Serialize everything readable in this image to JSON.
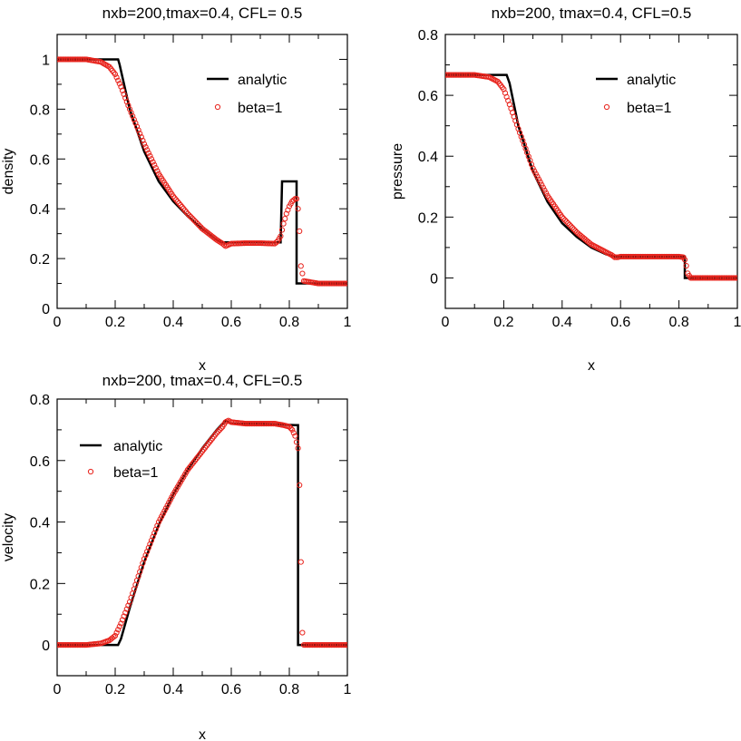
{
  "chart_data": [
    {
      "type": "line",
      "title": "nxb=200,tmax=0.4, CFL= 0.5",
      "xlabel": "x",
      "ylabel": "density",
      "xlim": [
        0,
        1
      ],
      "ylim": [
        0,
        1.1
      ],
      "xticks": [
        0,
        0.2,
        0.4,
        0.6,
        0.8,
        1
      ],
      "xtick_labels": [
        "0",
        "0.2",
        "0.4",
        "0.6",
        "0.8",
        "1"
      ],
      "yticks": [
        0,
        0.2,
        0.4,
        0.6,
        0.8,
        1
      ],
      "ytick_labels": [
        "0",
        "0.2",
        "0.4",
        "0.6",
        "0.8",
        "1"
      ],
      "legend_position": "top-right",
      "grid": false,
      "series": [
        {
          "name": "analytic",
          "style": "line",
          "color": "#000000",
          "x": [
            0,
            0.21,
            0.215,
            0.25,
            0.3,
            0.35,
            0.4,
            0.45,
            0.5,
            0.55,
            0.57,
            0.7,
            0.77,
            0.775,
            0.8,
            0.8,
            0.825,
            0.825,
            1.0
          ],
          "y": [
            1.0,
            1.0,
            0.98,
            0.8,
            0.63,
            0.51,
            0.43,
            0.37,
            0.32,
            0.275,
            0.265,
            0.265,
            0.265,
            0.51,
            0.51,
            0.51,
            0.51,
            0.1,
            0.1
          ]
        },
        {
          "name": "beta=1",
          "style": "markers",
          "color": "#e8231c",
          "x": [
            0,
            0.1,
            0.15,
            0.18,
            0.2,
            0.22,
            0.25,
            0.3,
            0.35,
            0.4,
            0.45,
            0.5,
            0.55,
            0.57,
            0.58,
            0.59,
            0.6,
            0.65,
            0.7,
            0.75,
            0.76,
            0.77,
            0.78,
            0.79,
            0.8,
            0.81,
            0.82,
            0.825,
            0.83,
            0.835,
            0.84,
            0.85,
            0.9,
            1.0
          ],
          "y": [
            1.0,
            1.0,
            0.99,
            0.97,
            0.94,
            0.89,
            0.8,
            0.66,
            0.54,
            0.45,
            0.38,
            0.32,
            0.275,
            0.26,
            0.25,
            0.255,
            0.26,
            0.262,
            0.262,
            0.26,
            0.27,
            0.29,
            0.34,
            0.38,
            0.41,
            0.43,
            0.44,
            0.44,
            0.4,
            0.31,
            0.17,
            0.11,
            0.1,
            0.1
          ]
        }
      ]
    },
    {
      "type": "line",
      "title": "nxb=200, tmax=0.4, CFL=0.5",
      "xlabel": "x",
      "ylabel": "pressure",
      "xlim": [
        0,
        1
      ],
      "ylim": [
        -0.1,
        0.8
      ],
      "xticks": [
        0,
        0.2,
        0.4,
        0.6,
        0.8,
        1
      ],
      "xtick_labels": [
        "0",
        "0.2",
        "0.4",
        "0.6",
        "0.8",
        "1"
      ],
      "yticks": [
        0,
        0.2,
        0.4,
        0.6,
        0.8
      ],
      "ytick_labels": [
        "0",
        "0.2",
        "0.4",
        "0.6",
        "0.8"
      ],
      "legend_position": "top-right",
      "grid": false,
      "series": [
        {
          "name": "analytic",
          "style": "line",
          "color": "#000000",
          "x": [
            0,
            0.21,
            0.22,
            0.25,
            0.3,
            0.35,
            0.4,
            0.45,
            0.5,
            0.55,
            0.58,
            0.7,
            0.82,
            0.82,
            1.0
          ],
          "y": [
            0.667,
            0.667,
            0.64,
            0.5,
            0.35,
            0.25,
            0.18,
            0.135,
            0.1,
            0.078,
            0.07,
            0.07,
            0.07,
            0.0,
            0.0
          ]
        },
        {
          "name": "beta=1",
          "style": "markers",
          "color": "#e8231c",
          "x": [
            0,
            0.1,
            0.15,
            0.18,
            0.2,
            0.22,
            0.25,
            0.3,
            0.35,
            0.4,
            0.45,
            0.5,
            0.55,
            0.57,
            0.58,
            0.59,
            0.6,
            0.65,
            0.7,
            0.75,
            0.8,
            0.815,
            0.82,
            0.825,
            0.83,
            0.84,
            0.9,
            1.0
          ],
          "y": [
            0.667,
            0.667,
            0.66,
            0.645,
            0.62,
            0.57,
            0.49,
            0.36,
            0.27,
            0.2,
            0.15,
            0.11,
            0.085,
            0.075,
            0.068,
            0.068,
            0.07,
            0.07,
            0.07,
            0.07,
            0.07,
            0.068,
            0.06,
            0.04,
            0.015,
            0.0,
            0.0,
            0.0
          ]
        }
      ]
    },
    {
      "type": "line",
      "title": "nxb=200, tmax=0.4, CFL=0.5",
      "xlabel": "x",
      "ylabel": "velocity",
      "xlim": [
        0,
        1
      ],
      "ylim": [
        -0.1,
        0.8
      ],
      "xticks": [
        0,
        0.2,
        0.4,
        0.6,
        0.8,
        1
      ],
      "xtick_labels": [
        "0",
        "0.2",
        "0.4",
        "0.6",
        "0.8",
        "1"
      ],
      "yticks": [
        0,
        0.2,
        0.4,
        0.6,
        0.8
      ],
      "ytick_labels": [
        "0",
        "0.2",
        "0.4",
        "0.6",
        "0.8"
      ],
      "legend_position": "top-left",
      "grid": false,
      "series": [
        {
          "name": "analytic",
          "style": "line",
          "color": "#000000",
          "x": [
            0,
            0.21,
            0.22,
            0.25,
            0.3,
            0.35,
            0.4,
            0.45,
            0.5,
            0.55,
            0.58,
            0.6,
            0.7,
            0.82,
            0.83,
            0.83,
            1.0
          ],
          "y": [
            0.0,
            0.0,
            0.02,
            0.12,
            0.27,
            0.39,
            0.49,
            0.57,
            0.64,
            0.7,
            0.73,
            0.72,
            0.72,
            0.715,
            0.715,
            0.0,
            0.0
          ]
        },
        {
          "name": "beta=1",
          "style": "markers",
          "color": "#e8231c",
          "x": [
            0,
            0.1,
            0.15,
            0.18,
            0.2,
            0.22,
            0.25,
            0.3,
            0.35,
            0.4,
            0.45,
            0.5,
            0.55,
            0.57,
            0.58,
            0.59,
            0.6,
            0.65,
            0.7,
            0.75,
            0.78,
            0.8,
            0.81,
            0.82,
            0.825,
            0.83,
            0.835,
            0.84,
            0.845,
            0.85,
            0.9,
            1.0
          ],
          "y": [
            0.0,
            0.0,
            0.005,
            0.015,
            0.03,
            0.07,
            0.14,
            0.28,
            0.4,
            0.49,
            0.57,
            0.63,
            0.69,
            0.71,
            0.725,
            0.73,
            0.725,
            0.72,
            0.72,
            0.72,
            0.715,
            0.71,
            0.7,
            0.68,
            0.66,
            0.64,
            0.52,
            0.27,
            0.04,
            0.0,
            0.0,
            0.0
          ]
        }
      ]
    }
  ]
}
